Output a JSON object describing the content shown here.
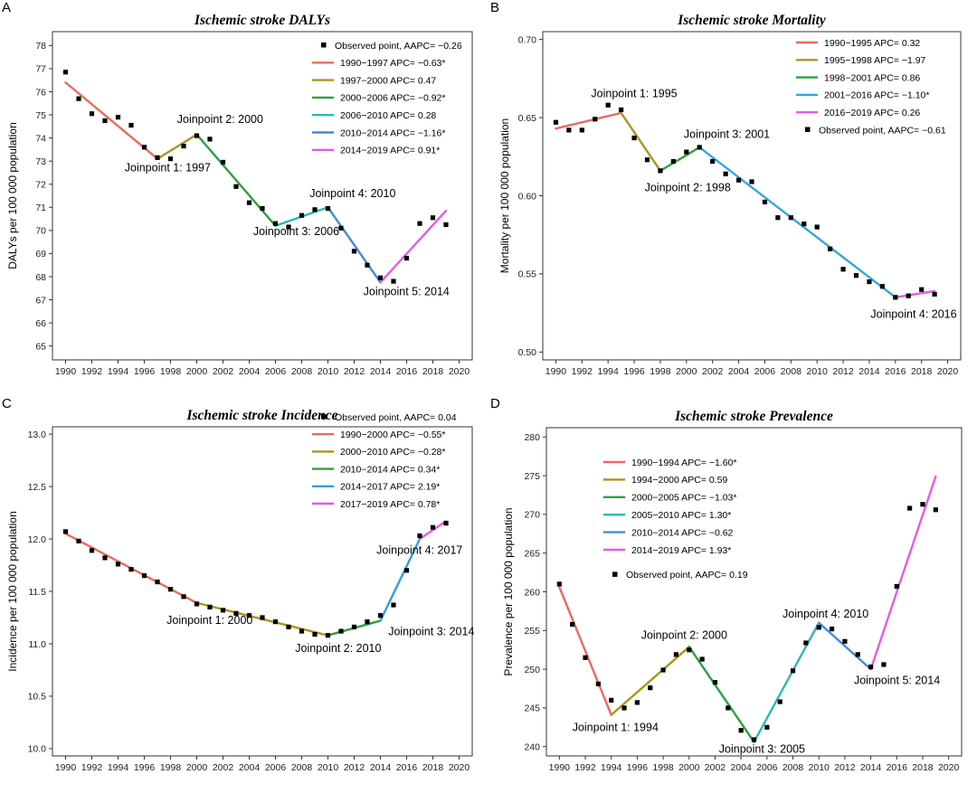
{
  "chart_data": [
    {
      "panel_label": "A",
      "type": "line",
      "title": "Ischemic stroke DALYs",
      "xlabel": "",
      "ylabel": "DALYs per 100 000 population",
      "xlim": [
        1989,
        2021
      ],
      "ylim": [
        64.4,
        78.6
      ],
      "xticks": [
        1990,
        1992,
        1994,
        1996,
        1998,
        2000,
        2002,
        2004,
        2006,
        2008,
        2010,
        2012,
        2014,
        2016,
        2018,
        2020
      ],
      "yticks": [
        65,
        66,
        67,
        68,
        69,
        70,
        71,
        72,
        73,
        74,
        75,
        76,
        77,
        78
      ],
      "grid": false,
      "legend_position": "top-right",
      "points_label": "Observed point, AAPC= −0.26",
      "points": [
        [
          1990,
          76.85
        ],
        [
          1991,
          75.7
        ],
        [
          1992,
          75.05
        ],
        [
          1993,
          74.75
        ],
        [
          1994,
          74.9
        ],
        [
          1995,
          74.55
        ],
        [
          1996,
          73.6
        ],
        [
          1997,
          73.15
        ],
        [
          1998,
          73.1
        ],
        [
          1999,
          73.65
        ],
        [
          2000,
          74.1
        ],
        [
          2001,
          73.95
        ],
        [
          2002,
          72.95
        ],
        [
          2003,
          71.9
        ],
        [
          2004,
          71.2
        ],
        [
          2005,
          70.95
        ],
        [
          2006,
          70.3
        ],
        [
          2007,
          70.15
        ],
        [
          2008,
          70.65
        ],
        [
          2009,
          70.9
        ],
        [
          2010,
          70.95
        ],
        [
          2011,
          70.1
        ],
        [
          2012,
          69.1
        ],
        [
          2013,
          68.5
        ],
        [
          2014,
          67.95
        ],
        [
          2015,
          67.8
        ],
        [
          2016,
          68.8
        ],
        [
          2017,
          70.3
        ],
        [
          2018,
          70.55
        ],
        [
          2019,
          70.25
        ]
      ],
      "series": [
        {
          "name": "1990−1997 APC= −0.63*",
          "color": "#ec6a5e",
          "points": [
            [
              1990,
              76.4
            ],
            [
              1997,
              73.1
            ]
          ]
        },
        {
          "name": "1997−2000 APC= 0.47",
          "color": "#a9951d",
          "points": [
            [
              1997,
              73.1
            ],
            [
              2000,
              74.15
            ]
          ]
        },
        {
          "name": "2000−2006 APC= −0.92*",
          "color": "#2aa140",
          "points": [
            [
              2000,
              74.15
            ],
            [
              2006,
              70.2
            ]
          ]
        },
        {
          "name": "2006−2010 APC= 0.28",
          "color": "#2bb9b0",
          "points": [
            [
              2006,
              70.2
            ],
            [
              2010,
              71.0
            ]
          ]
        },
        {
          "name": "2010−2014 APC= −1.16*",
          "color": "#4388e0",
          "points": [
            [
              2010,
              71.0
            ],
            [
              2014,
              67.75
            ]
          ]
        },
        {
          "name": "2014−2019 APC= 0.91*",
          "color": "#e35ce3",
          "points": [
            [
              2014,
              67.75
            ],
            [
              2019,
              70.85
            ]
          ]
        }
      ],
      "annotations": [
        {
          "text": "Joinpoint 1: 1997",
          "x": 1994.5,
          "y": 72.55
        },
        {
          "text": "Joinpoint 2: 2000",
          "x": 1998.5,
          "y": 74.65
        },
        {
          "text": "Joinpoint 3: 2006",
          "x": 2004.3,
          "y": 69.8
        },
        {
          "text": "Joinpoint 4: 2010",
          "x": 2008.6,
          "y": 71.45
        },
        {
          "text": "Joinpoint 5: 2014",
          "x": 2012.7,
          "y": 67.2
        }
      ]
    },
    {
      "panel_label": "B",
      "type": "line",
      "title": "Ischemic stroke Mortality",
      "xlabel": "",
      "ylabel": "Mortality per 100 000 population",
      "xlim": [
        1989,
        2021
      ],
      "ylim": [
        0.495,
        0.705
      ],
      "xticks": [
        1990,
        1992,
        1994,
        1996,
        1998,
        2000,
        2002,
        2004,
        2006,
        2008,
        2010,
        2012,
        2014,
        2016,
        2018,
        2020
      ],
      "yticks": [
        0.5,
        0.55,
        0.6,
        0.65,
        0.7
      ],
      "yticks_text": [
        "0.50",
        "0.55",
        "0.60",
        "0.65",
        "0.70"
      ],
      "grid": false,
      "legend_position": "top-right",
      "points_label": "Observed point, AAPC= −0.61",
      "points": [
        [
          1990,
          0.647
        ],
        [
          1991,
          0.642
        ],
        [
          1992,
          0.642
        ],
        [
          1993,
          0.649
        ],
        [
          1994,
          0.658
        ],
        [
          1995,
          0.655
        ],
        [
          1996,
          0.637
        ],
        [
          1997,
          0.623
        ],
        [
          1998,
          0.616
        ],
        [
          1999,
          0.622
        ],
        [
          2000,
          0.628
        ],
        [
          2001,
          0.631
        ],
        [
          2002,
          0.622
        ],
        [
          2003,
          0.614
        ],
        [
          2004,
          0.61
        ],
        [
          2005,
          0.609
        ],
        [
          2006,
          0.596
        ],
        [
          2007,
          0.586
        ],
        [
          2008,
          0.586
        ],
        [
          2009,
          0.582
        ],
        [
          2010,
          0.58
        ],
        [
          2011,
          0.566
        ],
        [
          2012,
          0.553
        ],
        [
          2013,
          0.549
        ],
        [
          2014,
          0.545
        ],
        [
          2015,
          0.542
        ],
        [
          2016,
          0.535
        ],
        [
          2017,
          0.536
        ],
        [
          2018,
          0.54
        ],
        [
          2019,
          0.537
        ]
      ],
      "series": [
        {
          "name": "1990−1995 APC= 0.32",
          "color": "#ec6a5e",
          "points": [
            [
              1990,
              0.643
            ],
            [
              1995,
              0.653
            ]
          ]
        },
        {
          "name": "1995−1998 APC= −1.97",
          "color": "#a9951d",
          "points": [
            [
              1995,
              0.653
            ],
            [
              1998,
              0.616
            ]
          ]
        },
        {
          "name": "1998−2001 APC= 0.86",
          "color": "#2aa140",
          "points": [
            [
              1998,
              0.616
            ],
            [
              2001,
              0.631
            ]
          ]
        },
        {
          "name": "2001−2016 APC= −1.10*",
          "color": "#33a7dd",
          "points": [
            [
              2001,
              0.631
            ],
            [
              2016,
              0.535
            ]
          ]
        },
        {
          "name": "2016−2019 APC= 0.26",
          "color": "#e35ce3",
          "points": [
            [
              2016,
              0.535
            ],
            [
              2019,
              0.539
            ]
          ]
        }
      ],
      "annotations": [
        {
          "text": "Joinpoint 1: 1995",
          "x": 1992.7,
          "y": 0.663
        },
        {
          "text": "Joinpoint 2: 1998",
          "x": 1996.8,
          "y": 0.603
        },
        {
          "text": "Joinpoint 3: 2001",
          "x": 1999.8,
          "y": 0.637
        },
        {
          "text": "Joinpoint 4: 2016",
          "x": 2014.1,
          "y": 0.522
        }
      ]
    },
    {
      "panel_label": "C",
      "type": "line",
      "title": "Ischemic stroke Incidence",
      "xlabel": "",
      "ylabel": "Incidence per 100 000 population",
      "xlim": [
        1989,
        2021
      ],
      "ylim": [
        9.93,
        13.07
      ],
      "xticks": [
        1990,
        1992,
        1994,
        1996,
        1998,
        2000,
        2002,
        2004,
        2006,
        2008,
        2010,
        2012,
        2014,
        2016,
        2018,
        2020
      ],
      "yticks": [
        10.0,
        10.5,
        11.0,
        11.5,
        12.0,
        12.5,
        13.0
      ],
      "yticks_text": [
        "10.0",
        "10.5",
        "11.0",
        "11.5",
        "12.0",
        "12.5",
        "13.0"
      ],
      "grid": false,
      "legend_position": "top-right",
      "points_label": "Observed point, AAPC= 0.04",
      "points": [
        [
          1990,
          12.07
        ],
        [
          1991,
          11.98
        ],
        [
          1992,
          11.89
        ],
        [
          1993,
          11.82
        ],
        [
          1994,
          11.76
        ],
        [
          1995,
          11.71
        ],
        [
          1996,
          11.65
        ],
        [
          1997,
          11.59
        ],
        [
          1998,
          11.52
        ],
        [
          1999,
          11.45
        ],
        [
          2000,
          11.38
        ],
        [
          2001,
          11.35
        ],
        [
          2002,
          11.32
        ],
        [
          2003,
          11.29
        ],
        [
          2004,
          11.27
        ],
        [
          2005,
          11.25
        ],
        [
          2006,
          11.21
        ],
        [
          2007,
          11.16
        ],
        [
          2008,
          11.12
        ],
        [
          2009,
          11.09
        ],
        [
          2010,
          11.08
        ],
        [
          2011,
          11.12
        ],
        [
          2012,
          11.16
        ],
        [
          2013,
          11.21
        ],
        [
          2014,
          11.27
        ],
        [
          2015,
          11.37
        ],
        [
          2016,
          11.7
        ],
        [
          2017,
          12.03
        ],
        [
          2018,
          12.11
        ],
        [
          2019,
          12.15
        ]
      ],
      "series": [
        {
          "name": "1990−2000 APC= −0.55*",
          "color": "#ec6a5e",
          "points": [
            [
              1990,
              12.05
            ],
            [
              2000,
              11.39
            ]
          ]
        },
        {
          "name": "2000−2010 APC= −0.28*",
          "color": "#a9951d",
          "points": [
            [
              2000,
              11.39
            ],
            [
              2010,
              11.08
            ]
          ]
        },
        {
          "name": "2010−2014 APC= 0.34*",
          "color": "#2aa140",
          "points": [
            [
              2010,
              11.08
            ],
            [
              2014,
              11.22
            ]
          ]
        },
        {
          "name": "2014−2017 APC= 2.19*",
          "color": "#2f9fdc",
          "points": [
            [
              2014,
              11.22
            ],
            [
              2017,
              12.0
            ]
          ]
        },
        {
          "name": "2017−2019 APC= 0.78*",
          "color": "#e35ce3",
          "points": [
            [
              2017,
              12.0
            ],
            [
              2019,
              12.17
            ]
          ]
        }
      ],
      "annotations": [
        {
          "text": "Joinpoint 1: 2000",
          "x": 1997.7,
          "y": 11.19
        },
        {
          "text": "Joinpoint 2: 2010",
          "x": 2007.5,
          "y": 10.92
        },
        {
          "text": "Joinpoint 3: 2014",
          "x": 2014.6,
          "y": 11.08
        },
        {
          "text": "Joinpoint 4: 2017",
          "x": 2013.7,
          "y": 11.86
        }
      ]
    },
    {
      "panel_label": "D",
      "type": "line",
      "title": "Ischemic stroke Prevalence",
      "xlabel": "",
      "ylabel": "Prevalence per 100 000 population",
      "xlim": [
        1989,
        2021
      ],
      "ylim": [
        238.8,
        281.2
      ],
      "xticks": [
        1990,
        1992,
        1994,
        1996,
        1998,
        2000,
        2002,
        2004,
        2006,
        2008,
        2010,
        2012,
        2014,
        2016,
        2018,
        2020
      ],
      "yticks": [
        240,
        245,
        250,
        255,
        260,
        265,
        270,
        275,
        280
      ],
      "grid": false,
      "legend_position": "top-left",
      "points_label": "Observed point, AAPC= 0.19",
      "points": [
        [
          1990,
          261.0
        ],
        [
          1991,
          255.8
        ],
        [
          1992,
          251.5
        ],
        [
          1993,
          248.1
        ],
        [
          1994,
          246.0
        ],
        [
          1995,
          245.0
        ],
        [
          1996,
          245.7
        ],
        [
          1997,
          247.6
        ],
        [
          1998,
          249.9
        ],
        [
          1999,
          251.9
        ],
        [
          2000,
          252.5
        ],
        [
          2001,
          251.3
        ],
        [
          2002,
          248.3
        ],
        [
          2003,
          245.0
        ],
        [
          2004,
          242.1
        ],
        [
          2005,
          240.9
        ],
        [
          2006,
          242.5
        ],
        [
          2007,
          245.8
        ],
        [
          2008,
          249.8
        ],
        [
          2009,
          253.4
        ],
        [
          2010,
          255.4
        ],
        [
          2011,
          255.2
        ],
        [
          2012,
          253.6
        ],
        [
          2013,
          251.9
        ],
        [
          2014,
          250.3
        ],
        [
          2015,
          250.6
        ],
        [
          2016,
          260.7
        ],
        [
          2017,
          270.8
        ],
        [
          2018,
          271.3
        ],
        [
          2019,
          270.6
        ]
      ],
      "series": [
        {
          "name": "1990−1994 APC= −1.60*",
          "color": "#ec6a5e",
          "points": [
            [
              1990,
              260.6
            ],
            [
              1994,
              244.1
            ]
          ]
        },
        {
          "name": "1994−2000 APC= 0.59",
          "color": "#a9951d",
          "points": [
            [
              1994,
              244.1
            ],
            [
              2000,
              252.9
            ]
          ]
        },
        {
          "name": "2000−2005 APC= −1.03*",
          "color": "#2aa140",
          "points": [
            [
              2000,
              252.9
            ],
            [
              2005,
              240.6
            ]
          ]
        },
        {
          "name": "2005−2010 APC= 1.30*",
          "color": "#2bb9b0",
          "points": [
            [
              2005,
              240.6
            ],
            [
              2010,
              256.0
            ]
          ]
        },
        {
          "name": "2010−2014 APC= −0.62",
          "color": "#4388e0",
          "points": [
            [
              2010,
              256.0
            ],
            [
              2014,
              250.0
            ]
          ]
        },
        {
          "name": "2014−2019 APC= 1.93*",
          "color": "#e35ce3",
          "points": [
            [
              2014,
              250.0
            ],
            [
              2019,
              274.9
            ]
          ]
        }
      ],
      "annotations": [
        {
          "text": "Joinpoint 1: 1994",
          "x": 1991.0,
          "y": 242.0
        },
        {
          "text": "Joinpoint 2: 2000",
          "x": 1996.3,
          "y": 253.9
        },
        {
          "text": "Joinpoint 3: 2005",
          "x": 2002.3,
          "y": 239.2
        },
        {
          "text": "Joinpoint 4: 2010",
          "x": 2007.2,
          "y": 256.7
        },
        {
          "text": "Joinpoint 5: 2014",
          "x": 2012.7,
          "y": 248.1
        }
      ]
    }
  ]
}
